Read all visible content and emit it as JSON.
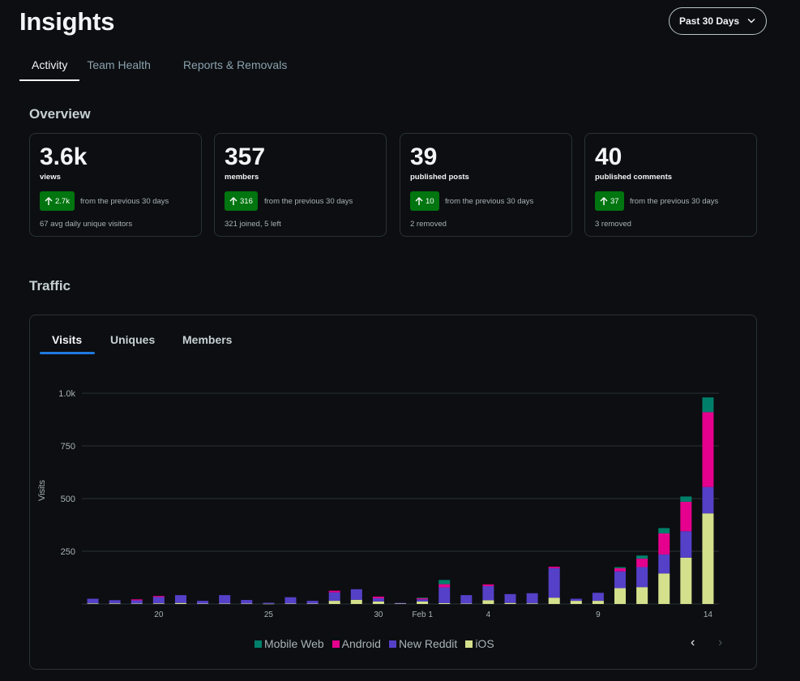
{
  "header": {
    "title": "Insights",
    "range_label": "Past 30 Days"
  },
  "tabs": [
    {
      "label": "Activity",
      "active": true
    },
    {
      "label": "Team Health",
      "active": false
    },
    {
      "label": "Reports & Removals",
      "active": false
    }
  ],
  "overview": {
    "title": "Overview",
    "cards": [
      {
        "value": "3.6k",
        "label": "views",
        "delta": "2.7k",
        "compare": "from the previous 30 days",
        "footer": "67 avg daily unique visitors"
      },
      {
        "value": "357",
        "label": "members",
        "delta": "316",
        "compare": "from the previous 30 days",
        "footer": "321 joined, 5 left"
      },
      {
        "value": "39",
        "label": "published posts",
        "delta": "10",
        "compare": "from the previous 30 days",
        "footer": "2 removed"
      },
      {
        "value": "40",
        "label": "published comments",
        "delta": "37",
        "compare": "from the previous 30 days",
        "footer": "3 removed"
      }
    ]
  },
  "traffic": {
    "title": "Traffic",
    "tabs": [
      {
        "label": "Visits",
        "active": true
      },
      {
        "label": "Uniques",
        "active": false
      },
      {
        "label": "Members",
        "active": false
      }
    ],
    "prev_symbol": "‹",
    "next_symbol": "›"
  },
  "colors": {
    "ios": "#d4e08c",
    "new_reddit": "#5540c8",
    "android": "#e5008e",
    "mobile_web": "#00806b",
    "delta_bg": "#01750f",
    "tab_underline": "#1f7ae0"
  },
  "chart_data": {
    "type": "bar",
    "stacked": true,
    "ylabel": "Visits",
    "ylim": [
      0,
      1000
    ],
    "yticks": [
      250,
      500,
      750,
      1000
    ],
    "ytick_labels": [
      "250",
      "500",
      "750",
      "1.0k"
    ],
    "xtick_labels": [
      {
        "index": 3,
        "label": "20"
      },
      {
        "index": 8,
        "label": "25"
      },
      {
        "index": 13,
        "label": "30"
      },
      {
        "index": 15,
        "label": "Feb 1"
      },
      {
        "index": 18,
        "label": "4"
      },
      {
        "index": 23,
        "label": "9"
      },
      {
        "index": 28,
        "label": "14"
      }
    ],
    "categories": [
      "Jan 17",
      "Jan 18",
      "Jan 19",
      "Jan 20",
      "Jan 21",
      "Jan 22",
      "Jan 23",
      "Jan 24",
      "Jan 25",
      "Jan 26",
      "Jan 27",
      "Jan 28",
      "Jan 29",
      "Jan 30",
      "Jan 31",
      "Feb 1",
      "Feb 2",
      "Feb 3",
      "Feb 4",
      "Feb 5",
      "Feb 6",
      "Feb 7",
      "Feb 8",
      "Feb 9",
      "Feb 10",
      "Feb 11",
      "Feb 12",
      "Feb 13",
      "Feb 14"
    ],
    "series": [
      {
        "name": "iOS",
        "color": "#d4e08c",
        "values": [
          3,
          3,
          2,
          3,
          5,
          2,
          2,
          2,
          1,
          2,
          2,
          15,
          20,
          12,
          2,
          12,
          4,
          2,
          18,
          5,
          3,
          30,
          15,
          15,
          75,
          80,
          145,
          220,
          430
        ]
      },
      {
        "name": "New Reddit",
        "color": "#5540c8",
        "values": [
          22,
          15,
          15,
          30,
          37,
          13,
          40,
          17,
          5,
          30,
          13,
          40,
          50,
          15,
          3,
          10,
          75,
          40,
          67,
          42,
          48,
          140,
          10,
          38,
          80,
          95,
          90,
          125,
          125
        ]
      },
      {
        "name": "Android",
        "color": "#e5008e",
        "values": [
          0,
          0,
          5,
          5,
          0,
          0,
          0,
          0,
          0,
          0,
          0,
          8,
          0,
          8,
          0,
          5,
          15,
          0,
          8,
          0,
          0,
          7,
          0,
          0,
          15,
          40,
          100,
          140,
          355
        ]
      },
      {
        "name": "Mobile Web",
        "color": "#00806b",
        "values": [
          0,
          0,
          0,
          0,
          0,
          0,
          0,
          0,
          0,
          0,
          0,
          0,
          0,
          0,
          0,
          3,
          20,
          0,
          0,
          0,
          0,
          0,
          0,
          0,
          5,
          15,
          25,
          25,
          70
        ]
      }
    ],
    "legend": [
      "Mobile Web",
      "Android",
      "New Reddit",
      "iOS"
    ]
  }
}
